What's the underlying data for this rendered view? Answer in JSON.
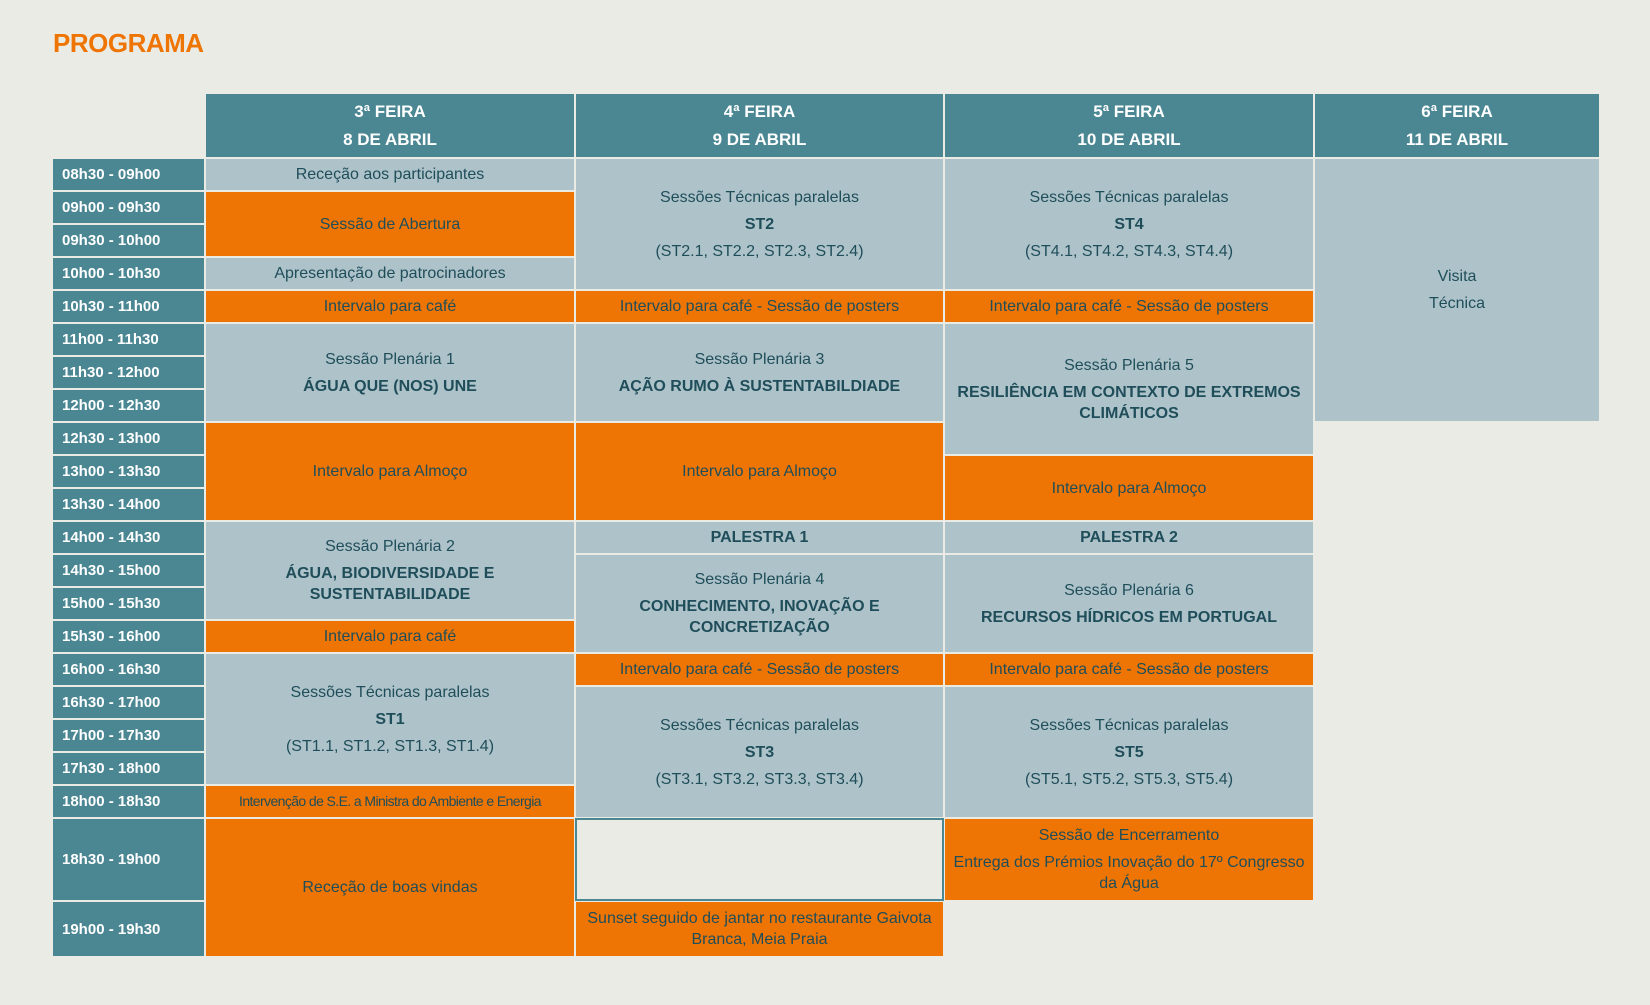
{
  "title": "PROGRAMA",
  "colors": {
    "header": "#4a8793",
    "session": "#adc2c9",
    "break": "#ee7504",
    "text": "#1f4e5a",
    "background": "#ebebe6"
  },
  "days": [
    {
      "weekday": "3ª FEIRA",
      "date": "8 DE ABRIL"
    },
    {
      "weekday": "4ª FEIRA",
      "date": "9 DE ABRIL"
    },
    {
      "weekday": "5ª FEIRA",
      "date": "10 DE ABRIL"
    },
    {
      "weekday": "6ª FEIRA",
      "date": "11 DE ABRIL"
    }
  ],
  "time_slots": [
    "08h30 - 09h00",
    "09h00 - 09h30",
    "09h30 - 10h00",
    "10h00 - 10h30",
    "10h30 - 11h00",
    "11h00 - 11h30",
    "11h30 - 12h00",
    "12h00 - 12h30",
    "12h30 - 13h00",
    "13h00 - 13h30",
    "13h30 - 14h00",
    "14h00 - 14h30",
    "14h30 - 15h00",
    "15h00 - 15h30",
    "15h30 - 16h00",
    "16h00 - 16h30",
    "16h30 - 17h00",
    "17h00 - 17h30",
    "17h30 - 18h00",
    "18h00 - 18h30",
    "18h30 - 19h00",
    "19h00 - 19h30"
  ],
  "events": [
    {
      "day": 0,
      "from": "08h30",
      "to": "09h00",
      "type": "session",
      "lines": [
        {
          "text": "Receção aos participantes"
        }
      ]
    },
    {
      "day": 0,
      "from": "09h00",
      "to": "10h00",
      "type": "break",
      "lines": [
        {
          "text": "Sessão de Abertura"
        }
      ]
    },
    {
      "day": 0,
      "from": "10h00",
      "to": "10h30",
      "type": "session",
      "lines": [
        {
          "text": "Apresentação de patrocinadores"
        }
      ]
    },
    {
      "day": 0,
      "from": "10h30",
      "to": "11h00",
      "type": "break",
      "lines": [
        {
          "text": "Intervalo para café"
        }
      ]
    },
    {
      "day": 0,
      "from": "11h00",
      "to": "12h30",
      "type": "session",
      "lines": [
        {
          "text": "Sessão Plenária 1"
        },
        {
          "text": "ÁGUA QUE (NOS) UNE",
          "bold": true
        }
      ]
    },
    {
      "day": 0,
      "from": "12h30",
      "to": "14h00",
      "type": "break",
      "lines": [
        {
          "text": "Intervalo para Almoço"
        }
      ]
    },
    {
      "day": 0,
      "from": "14h00",
      "to": "15h30",
      "type": "session",
      "lines": [
        {
          "text": "Sessão Plenária 2"
        },
        {
          "text": "ÁGUA, BIODIVERSIDADE E SUSTENTABILIDADE",
          "bold": true
        }
      ]
    },
    {
      "day": 0,
      "from": "15h30",
      "to": "16h00",
      "type": "break",
      "lines": [
        {
          "text": "Intervalo para café"
        }
      ]
    },
    {
      "day": 0,
      "from": "16h00",
      "to": "18h00",
      "type": "session",
      "lines": [
        {
          "text": "Sessões Técnicas paralelas"
        },
        {
          "text": "ST1",
          "bold": true
        },
        {
          "text": "(ST1.1, ST1.2, ST1.3, ST1.4)"
        }
      ]
    },
    {
      "day": 0,
      "from": "18h00",
      "to": "18h30",
      "type": "break",
      "small": true,
      "lines": [
        {
          "text": "Intervenção de S.E. a Ministra do Ambiente e Energia"
        }
      ]
    },
    {
      "day": 0,
      "from": "18h30",
      "to": "19h30",
      "type": "break",
      "lines": [
        {
          "text": "Receção de boas vindas"
        }
      ]
    },
    {
      "day": 1,
      "from": "08h30",
      "to": "10h30",
      "type": "session",
      "lines": [
        {
          "text": "Sessões Técnicas paralelas"
        },
        {
          "text": "ST2",
          "bold": true
        },
        {
          "text": "(ST2.1, ST2.2, ST2.3, ST2.4)"
        }
      ]
    },
    {
      "day": 1,
      "from": "10h30",
      "to": "11h00",
      "type": "break",
      "lines": [
        {
          "text": "Intervalo para café - Sessão de posters"
        }
      ]
    },
    {
      "day": 1,
      "from": "11h00",
      "to": "12h30",
      "type": "session",
      "lines": [
        {
          "text": "Sessão Plenária 3"
        },
        {
          "text": "AÇÃO RUMO À SUSTENTABILDIADE",
          "bold": true
        }
      ]
    },
    {
      "day": 1,
      "from": "12h30",
      "to": "14h00",
      "type": "break",
      "lines": [
        {
          "text": "Intervalo para Almoço"
        }
      ]
    },
    {
      "day": 1,
      "from": "14h00",
      "to": "14h30",
      "type": "session",
      "lines": [
        {
          "text": "PALESTRA 1",
          "bold": true
        }
      ]
    },
    {
      "day": 1,
      "from": "14h30",
      "to": "16h00",
      "type": "session",
      "lines": [
        {
          "text": "Sessão Plenária 4"
        },
        {
          "text": "CONHECIMENTO, INOVAÇÃO E CONCRETIZAÇÃO",
          "bold": true
        }
      ]
    },
    {
      "day": 1,
      "from": "16h00",
      "to": "16h30",
      "type": "break",
      "lines": [
        {
          "text": "Intervalo para café - Sessão de posters"
        }
      ]
    },
    {
      "day": 1,
      "from": "16h30",
      "to": "18h30",
      "type": "session",
      "lines": [
        {
          "text": "Sessões Técnicas paralelas"
        },
        {
          "text": "ST3",
          "bold": true
        },
        {
          "text": "(ST3.1, ST3.2, ST3.3, ST3.4)"
        }
      ]
    },
    {
      "day": 1,
      "from": "18h30",
      "to": "19h00",
      "type": "empty",
      "lines": []
    },
    {
      "day": 1,
      "from": "19h00",
      "to": "19h30",
      "type": "break",
      "lines": [
        {
          "text": "Sunset seguido de jantar no restaurante Gaivota Branca, Meia Praia"
        }
      ]
    },
    {
      "day": 2,
      "from": "08h30",
      "to": "10h30",
      "type": "session",
      "lines": [
        {
          "text": "Sessões Técnicas paralelas"
        },
        {
          "text": "ST4",
          "bold": true
        },
        {
          "text": "(ST4.1, ST4.2, ST4.3, ST4.4)"
        }
      ]
    },
    {
      "day": 2,
      "from": "10h30",
      "to": "11h00",
      "type": "break",
      "lines": [
        {
          "text": "Intervalo para café - Sessão de posters"
        }
      ]
    },
    {
      "day": 2,
      "from": "11h00",
      "to": "13h00",
      "type": "session",
      "lines": [
        {
          "text": "Sessão Plenária 5"
        },
        {
          "text": "RESILIÊNCIA EM CONTEXTO DE EXTREMOS CLIMÁTICOS",
          "bold": true
        }
      ]
    },
    {
      "day": 2,
      "from": "13h00",
      "to": "14h00",
      "type": "break",
      "lines": [
        {
          "text": "Intervalo para Almoço"
        }
      ]
    },
    {
      "day": 2,
      "from": "14h00",
      "to": "14h30",
      "type": "session",
      "lines": [
        {
          "text": "PALESTRA 2",
          "bold": true
        }
      ]
    },
    {
      "day": 2,
      "from": "14h30",
      "to": "16h00",
      "type": "session",
      "lines": [
        {
          "text": "Sessão Plenária 6"
        },
        {
          "text": "RECURSOS HÍDRICOS EM PORTUGAL",
          "bold": true
        }
      ]
    },
    {
      "day": 2,
      "from": "16h00",
      "to": "16h30",
      "type": "break",
      "lines": [
        {
          "text": "Intervalo para café - Sessão de posters"
        }
      ]
    },
    {
      "day": 2,
      "from": "16h30",
      "to": "18h30",
      "type": "session",
      "lines": [
        {
          "text": "Sessões Técnicas paralelas"
        },
        {
          "text": "ST5",
          "bold": true
        },
        {
          "text": "(ST5.1, ST5.2, ST5.3, ST5.4)"
        }
      ]
    },
    {
      "day": 2,
      "from": "18h30",
      "to": "19h00",
      "type": "break",
      "lines": [
        {
          "text": "Sessão de Encerramento"
        },
        {
          "text": "Entrega dos Prémios  Inovação do 17º Congresso da Água"
        }
      ]
    },
    {
      "day": 3,
      "from": "08h30",
      "to": "12h30",
      "type": "session",
      "lines": [
        {
          "text": "Visita"
        },
        {
          "text": "Técnica"
        }
      ]
    }
  ]
}
